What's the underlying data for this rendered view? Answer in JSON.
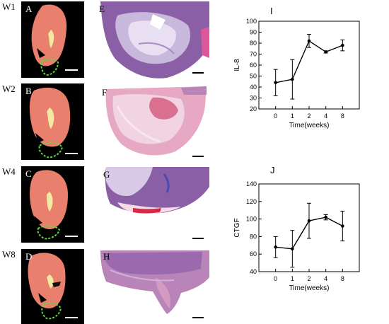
{
  "week_labels": [
    "W1",
    "W2",
    "W4",
    "W8"
  ],
  "kidney_panel_labels": [
    "A",
    "B",
    "C",
    "D"
  ],
  "histology_panel_labels": [
    "E",
    "F",
    "G",
    "H"
  ],
  "colors": {
    "kidney_bg": "#000000",
    "kidney_tissue": "#e9806e",
    "kidney_pelvis": "#f3e9a2",
    "outline": "#5fd63c",
    "he_purple": "#8b5fa6",
    "he_pink": "#e7a8c4",
    "line": "#000000"
  },
  "charts": [
    {
      "panel_label": "I",
      "chart_data": {
        "type": "line",
        "x": [
          "0",
          "1",
          "2",
          "4",
          "8"
        ],
        "values": [
          44,
          47,
          82,
          72,
          78
        ],
        "errors": [
          12,
          18,
          6,
          1,
          5
        ],
        "xlabel": "Time(weeks)",
        "ylabel": "IL-8",
        "ylim": [
          20,
          100
        ],
        "yticks": [
          20,
          30,
          40,
          50,
          60,
          70,
          80,
          90,
          100
        ],
        "grid": false,
        "legend": "none"
      }
    },
    {
      "panel_label": "J",
      "chart_data": {
        "type": "line",
        "x": [
          "0",
          "1",
          "2",
          "4",
          "8"
        ],
        "values": [
          68,
          66,
          98,
          102,
          92
        ],
        "errors": [
          12,
          21,
          20,
          3,
          17
        ],
        "xlabel": "Time(weeks)",
        "ylabel": "CTGF",
        "ylim": [
          40,
          140
        ],
        "yticks": [
          40,
          60,
          80,
          100,
          120,
          140
        ],
        "grid": false,
        "legend": "none"
      }
    }
  ]
}
